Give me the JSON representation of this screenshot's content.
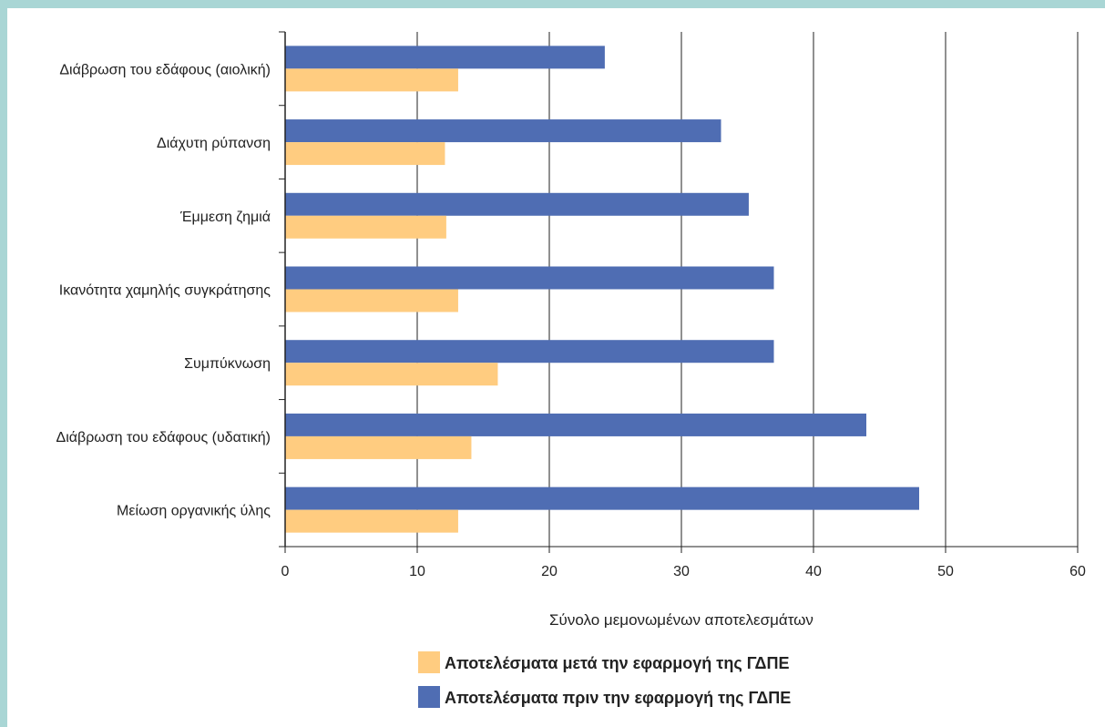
{
  "chart_data": {
    "type": "bar",
    "orientation": "horizontal",
    "categories": [
      "Διάβρωση του εδάφους (αιολική)",
      "Διάχυτη ρύπανση",
      "Έμμεση ζημιά",
      "Ικανότητα χαμηλής συγκράτησης",
      "Συμπύκνωση",
      "Διάβρωση του εδάφους (υδατική)",
      "Μείωση οργανικής ύλης"
    ],
    "series": [
      {
        "name": "Αποτελέσματα πριν την εφαρμογή της ΓΔΠΕ",
        "color": "#4f6db3",
        "values": [
          24.2,
          33,
          35.1,
          37,
          37,
          44,
          48
        ]
      },
      {
        "name": "Αποτελέσματα μετά την εφαρμογή της ΓΔΠΕ",
        "color": "#ffcc80",
        "values": [
          13.1,
          12.1,
          12.2,
          13.1,
          16.1,
          14.1,
          13.1
        ]
      }
    ],
    "xlabel": "Σύνολο μεμονωμένων αποτελεσμάτων",
    "ylabel": "",
    "xlim": [
      0,
      60
    ],
    "xticks": [
      "0",
      "10",
      "20",
      "30",
      "40",
      "50",
      "60"
    ],
    "grid": "vertical",
    "legend_position": "bottom",
    "legend_order": [
      "Αποτελέσματα μετά την εφαρμογή της ΓΔΠΕ",
      "Αποτελέσματα πριν την εφαρμογή της ΓΔΠΕ"
    ]
  },
  "colors": {
    "border": "#a9d6d5",
    "background": "#ffffff"
  }
}
